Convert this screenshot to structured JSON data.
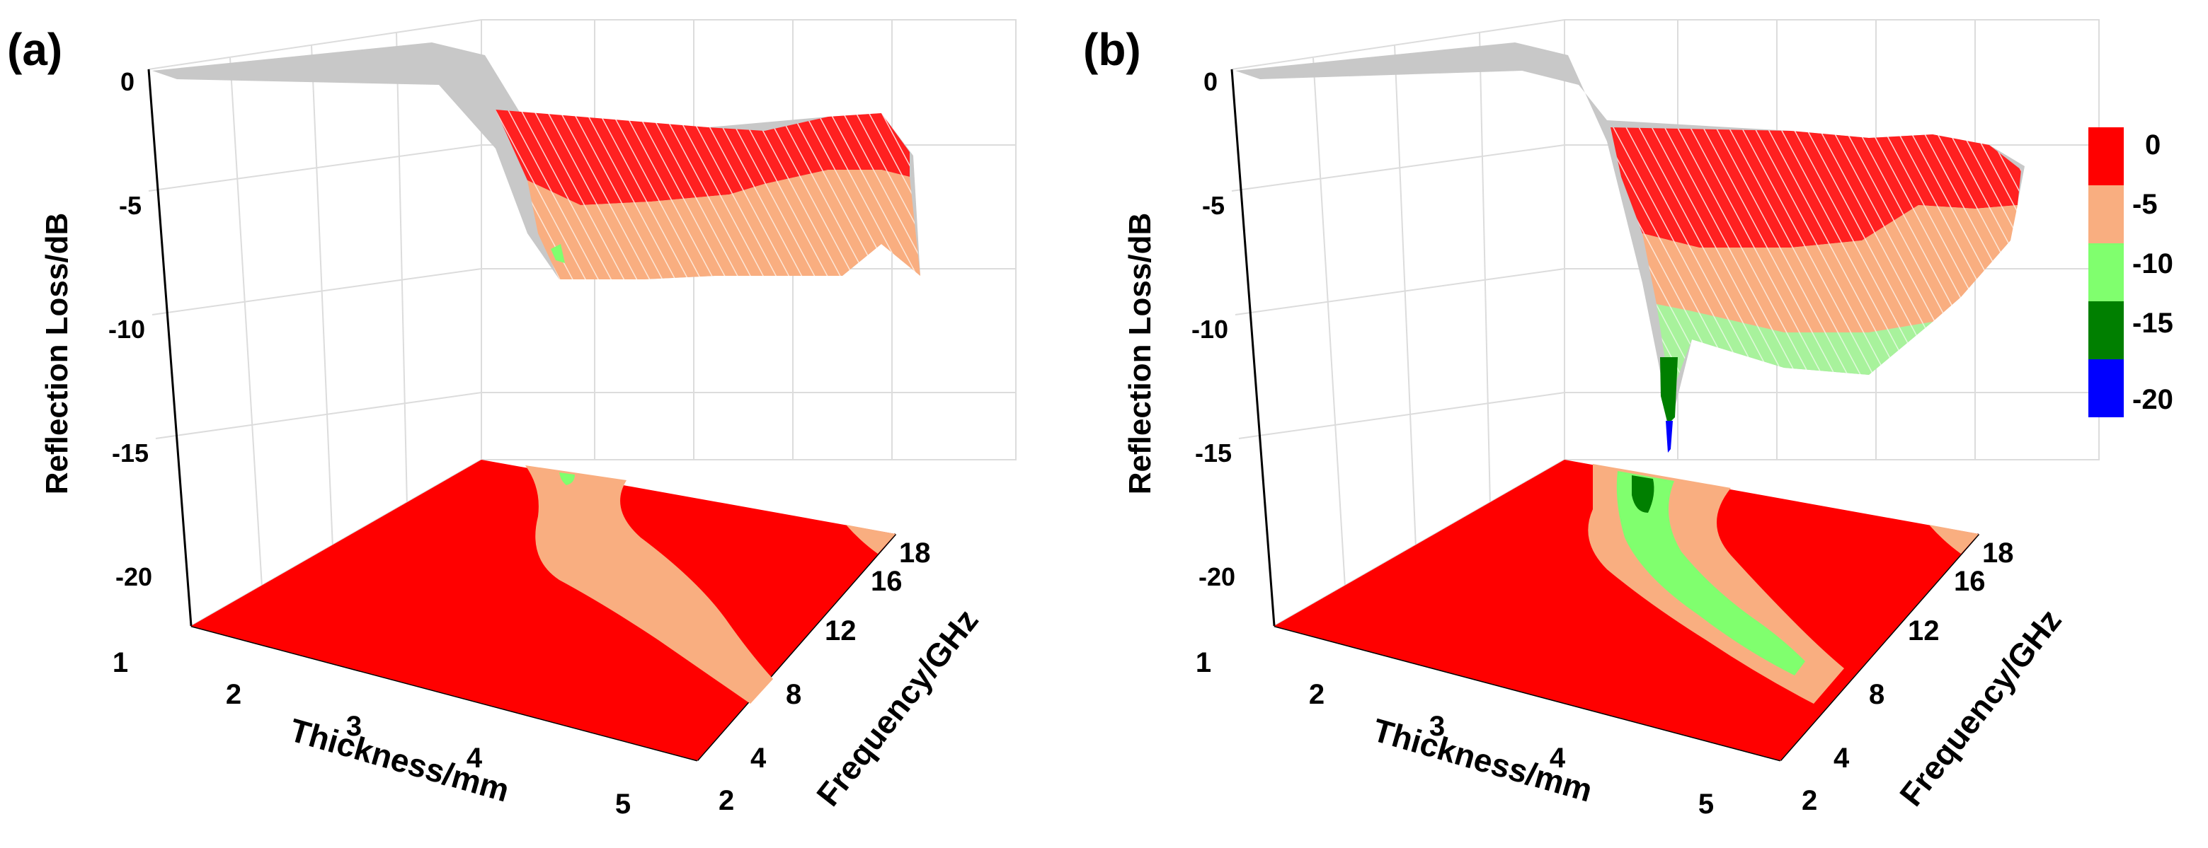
{
  "colors": {
    "band_0": "#ff0000",
    "band_5": "#f9ae80",
    "band_10": "#80ff6e",
    "band_15": "#007f00",
    "band_20": "#0000ff",
    "surface_mesh": "#c8c8c8",
    "grid": "#dcdcdc",
    "axis": "#000000"
  },
  "chart_data": [
    {
      "panel_label": "(a)",
      "type": "surface3d",
      "title": "",
      "zlabel": "Reflection Loss/dB",
      "xlabel": "Thickness/mm",
      "ylabel": "Frequency/GHz",
      "z_ticks": [
        "0",
        "-5",
        "-10",
        "-15",
        "-20"
      ],
      "x_ticks": [
        "1",
        "2",
        "3",
        "4",
        "5"
      ],
      "y_ticks": [
        "2",
        "4",
        "8",
        "12",
        "16",
        "18"
      ],
      "zlim": [
        -22,
        0
      ],
      "xlim": [
        1,
        5.5
      ],
      "ylim": [
        2,
        18
      ],
      "min_reflection_loss": -12,
      "contour_regions": [
        {
          "name": "background",
          "band": "0 to -5"
        },
        {
          "name": "main-band",
          "band": "-5 to -10"
        },
        {
          "name": "small-dip",
          "band": "-10 to -15"
        },
        {
          "name": "high-freq-edge",
          "band": "-5 to -10"
        }
      ]
    },
    {
      "panel_label": "(b)",
      "type": "surface3d",
      "title": "",
      "zlabel": "Reflection Loss/dB",
      "xlabel": "Thickness/mm",
      "ylabel": "Frequency/GHz",
      "z_ticks": [
        "0",
        "-5",
        "-10",
        "-15",
        "-20"
      ],
      "x_ticks": [
        "1",
        "2",
        "3",
        "4",
        "5"
      ],
      "y_ticks": [
        "2",
        "4",
        "8",
        "12",
        "16",
        "18"
      ],
      "zlim": [
        -22,
        0
      ],
      "xlim": [
        1,
        5.5
      ],
      "ylim": [
        2,
        18
      ],
      "min_reflection_loss": -16,
      "contour_regions": [
        {
          "name": "background",
          "band": "0 to -5"
        },
        {
          "name": "outer-band",
          "band": "-5 to -10"
        },
        {
          "name": "inner-band",
          "band": "-10 to -15"
        },
        {
          "name": "deep-spot",
          "band": "-15 to -20"
        },
        {
          "name": "high-freq-edge",
          "band": "-5 to -10"
        }
      ]
    }
  ],
  "legend": {
    "labels": [
      "0",
      "-5",
      "-10",
      "-15",
      "-20"
    ]
  }
}
